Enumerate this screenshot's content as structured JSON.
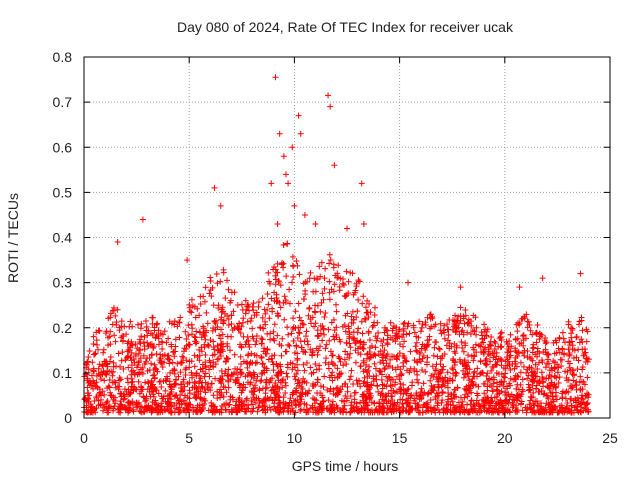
{
  "chart_data": {
    "type": "scatter",
    "title": "Day 080 of 2024, Rate Of TEC Index for receiver ucak",
    "xlabel": "GPS time / hours",
    "ylabel": "ROTI / TECUs",
    "xlim": [
      0,
      25
    ],
    "ylim": [
      0,
      0.8
    ],
    "x_ticks": [
      "0",
      "5",
      "10",
      "15",
      "20",
      "25"
    ],
    "y_ticks": [
      "0",
      "0.1",
      "0.2",
      "0.3",
      "0.4",
      "0.5",
      "0.6",
      "0.7",
      "0.8"
    ],
    "grid": true,
    "marker": "+",
    "marker_color": "#ff0000",
    "series": [
      {
        "name": "",
        "x": [
          9.1,
          9.3,
          9.5,
          9.6,
          9.7,
          9.9,
          10.2,
          10.3,
          11.6,
          11.7,
          11.9,
          6.2,
          6.5,
          2.8,
          13.2,
          13.3,
          8.9,
          9.2,
          10.0,
          10.5,
          11.0,
          12.5,
          1.6,
          23.6,
          21.8,
          20.7,
          17.9,
          15.4,
          4.9
        ],
        "y": [
          0.755,
          0.63,
          0.58,
          0.54,
          0.52,
          0.6,
          0.67,
          0.63,
          0.715,
          0.69,
          0.56,
          0.51,
          0.47,
          0.44,
          0.52,
          0.43,
          0.52,
          0.43,
          0.47,
          0.45,
          0.43,
          0.42,
          0.39,
          0.32,
          0.31,
          0.29,
          0.29,
          0.3,
          0.35
        ]
      }
    ],
    "density_profile": {
      "hours": [
        0,
        0.5,
        1,
        1.5,
        2,
        2.5,
        3,
        3.5,
        4,
        4.5,
        5,
        5.5,
        6,
        6.5,
        7,
        7.5,
        8,
        8.5,
        9,
        9.5,
        10,
        10.5,
        11,
        11.5,
        12,
        12.5,
        13,
        13.5,
        14,
        14.5,
        15,
        15.5,
        16,
        16.5,
        17,
        17.5,
        18,
        18.5,
        19,
        19.5,
        20,
        20.5,
        21,
        21.5,
        22,
        22.5,
        23,
        23.5,
        24
      ],
      "typical_max": [
        0.1,
        0.18,
        0.2,
        0.24,
        0.2,
        0.22,
        0.24,
        0.2,
        0.2,
        0.22,
        0.25,
        0.27,
        0.3,
        0.33,
        0.28,
        0.26,
        0.24,
        0.28,
        0.35,
        0.4,
        0.35,
        0.3,
        0.32,
        0.36,
        0.34,
        0.32,
        0.3,
        0.26,
        0.22,
        0.2,
        0.2,
        0.22,
        0.2,
        0.22,
        0.2,
        0.22,
        0.24,
        0.22,
        0.2,
        0.18,
        0.18,
        0.2,
        0.22,
        0.2,
        0.16,
        0.16,
        0.2,
        0.22,
        0.2
      ]
    }
  }
}
